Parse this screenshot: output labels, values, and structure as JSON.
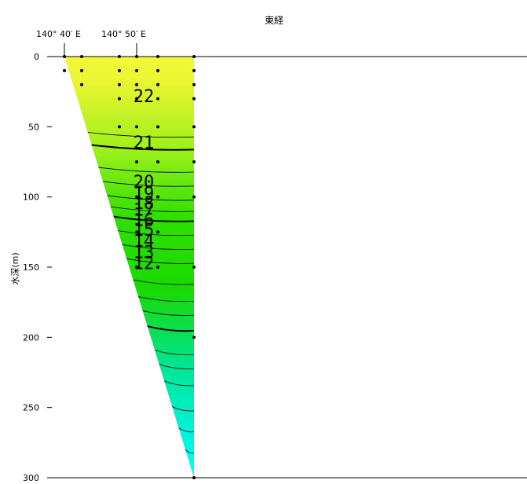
{
  "chart_data": {
    "type": "contour",
    "xlabel": "東経",
    "ylabel": "水深(m)",
    "x_tick_labels": [
      "140° 40′ E",
      "140° 50′ E"
    ],
    "y_ticks": [
      0,
      50,
      100,
      150,
      200,
      250,
      300
    ],
    "ylim": [
      0,
      300
    ],
    "color_scale": {
      "warm": "#f5f93a",
      "mid": "#19d900",
      "cold": "#00ffff"
    },
    "contour_labels": [
      "22",
      "21",
      "20",
      "19",
      "18",
      "17",
      "16",
      "15",
      "14",
      "13",
      "12"
    ],
    "contour_depths": [
      28,
      61,
      89,
      97,
      104,
      109,
      116,
      123,
      131,
      139,
      147
    ],
    "bold_isotherm_depths": [
      64,
      115,
      193
    ],
    "thin_isotherm_depths": [
      55,
      80,
      90,
      100,
      108,
      125,
      135,
      145,
      160,
      172,
      182,
      210,
      220,
      232,
      250,
      265,
      280
    ]
  }
}
